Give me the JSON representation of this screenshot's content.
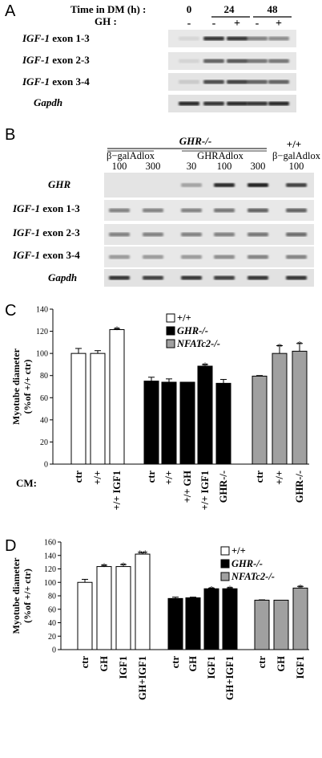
{
  "panel_a": {
    "letter": "A",
    "time_label": "Time in DM (h) :",
    "gh_label": "GH :",
    "times": [
      "0",
      "24",
      "48"
    ],
    "gh_signs": [
      "-",
      "-",
      "+",
      "-",
      "+"
    ],
    "rows": [
      {
        "gene": "IGF-1",
        "suffix": " exon 1-3"
      },
      {
        "gene": "IGF-1",
        "suffix": " exon 2-3"
      },
      {
        "gene": "IGF-1",
        "suffix": " exon 3-4"
      },
      {
        "gene": "Gapdh",
        "suffix": ""
      }
    ]
  },
  "panel_b": {
    "letter": "B",
    "group_ko": "GHR-/-",
    "group_wt": "+/+",
    "sub_bgal": "β−galAdlox",
    "sub_ghr": "GHRAdlox",
    "sub_wt_bgal": "β−galAdlox",
    "doses": [
      "100",
      "300",
      "30",
      "100",
      "300",
      "100"
    ],
    "rows": [
      {
        "gene": "GHR",
        "suffix": ""
      },
      {
        "gene": "IGF-1",
        "suffix": " exon 1-3"
      },
      {
        "gene": "IGF-1",
        "suffix": " exon 2-3"
      },
      {
        "gene": "IGF-1",
        "suffix": " exon 3-4"
      },
      {
        "gene": "Gapdh",
        "suffix": ""
      }
    ]
  },
  "chart_data": [
    {
      "type": "bar",
      "panel": "C",
      "ylabel": "Myotube diameter (%of +/+ ctr)",
      "ylabel_lines": [
        "Myotube diameter",
        "(%of +/+ ctr)"
      ],
      "ylim": [
        0,
        140
      ],
      "yticks": [
        0,
        20,
        40,
        60,
        80,
        100,
        120,
        140
      ],
      "xprefix": "CM:",
      "legend": [
        {
          "label": "+/+",
          "italic": false,
          "color": "#ffffff"
        },
        {
          "label": "GHR-/-",
          "italic": true,
          "color": "#000000"
        },
        {
          "label": "NFATc2-/-",
          "italic": true,
          "color": "#a0a0a0"
        }
      ],
      "groups": [
        {
          "color": "#ffffff",
          "bars": [
            {
              "label": "ctr",
              "value": 100,
              "err": 4.5,
              "sig": ""
            },
            {
              "label": "+/+",
              "value": 100,
              "err": 2.5,
              "sig": ""
            },
            {
              "label": "+/+ IGF1",
              "value": 121.5,
              "err": 1,
              "sig": "*"
            }
          ]
        },
        {
          "color": "#000000",
          "bars": [
            {
              "label": "ctr",
              "value": 75,
              "err": 3.5,
              "sig": ""
            },
            {
              "label": "+/+",
              "value": 74,
              "err": 3,
              "sig": ""
            },
            {
              "label": "+/+ GH",
              "value": 74,
              "err": 0,
              "sig": ""
            },
            {
              "label": "+/+ IGF1",
              "value": 88.5,
              "err": 1.5,
              "sig": "*"
            },
            {
              "label": "GHR-/-",
              "value": 73,
              "err": 3.5,
              "sig": ""
            }
          ]
        },
        {
          "color": "#a0a0a0",
          "bars": [
            {
              "label": "ctr",
              "value": 79.5,
              "err": 0.5,
              "sig": ""
            },
            {
              "label": "+/+",
              "value": 100,
              "err": 7,
              "sig": "*"
            },
            {
              "label": "GHR-/-",
              "value": 102,
              "err": 7,
              "sig": "*"
            }
          ]
        }
      ]
    },
    {
      "type": "bar",
      "panel": "D",
      "ylabel": "Myotube diameter (%of +/+ ctr)",
      "ylabel_lines": [
        "Myotube diameter",
        "(%of +/+ ctr)"
      ],
      "ylim": [
        0,
        160
      ],
      "yticks": [
        0,
        20,
        40,
        60,
        80,
        100,
        120,
        140,
        160
      ],
      "xprefix": "",
      "legend": [
        {
          "label": "+/+",
          "italic": false,
          "color": "#ffffff"
        },
        {
          "label": "GHR-/-",
          "italic": true,
          "color": "#000000"
        },
        {
          "label": "NFATc2-/-",
          "italic": true,
          "color": "#a0a0a0"
        }
      ],
      "groups": [
        {
          "color": "#ffffff",
          "bars": [
            {
              "label": "ctr",
              "value": 100,
              "err": 4.5,
              "sig": ""
            },
            {
              "label": "GH",
              "value": 123.5,
              "err": 2,
              "sig": "*"
            },
            {
              "label": "IGF1",
              "value": 123.5,
              "err": 3,
              "sig": "*"
            },
            {
              "label": "GH+IGF1",
              "value": 142,
              "err": 2.5,
              "sig": "**"
            }
          ]
        },
        {
          "color": "#000000",
          "bars": [
            {
              "label": "ctr",
              "value": 76,
              "err": 2,
              "sig": ""
            },
            {
              "label": "GH",
              "value": 77,
              "err": 1,
              "sig": ""
            },
            {
              "label": "IGF1",
              "value": 90.5,
              "err": 1,
              "sig": "*"
            },
            {
              "label": "GH+IGF1",
              "value": 90.5,
              "err": 1.5,
              "sig": "*"
            }
          ]
        },
        {
          "color": "#a0a0a0",
          "bars": [
            {
              "label": "ctr",
              "value": 73.5,
              "err": 0.5,
              "sig": ""
            },
            {
              "label": "GH",
              "value": 73.5,
              "err": 0,
              "sig": ""
            },
            {
              "label": "IGF1",
              "value": 91.5,
              "err": 2.5,
              "sig": "*"
            }
          ]
        }
      ]
    }
  ]
}
